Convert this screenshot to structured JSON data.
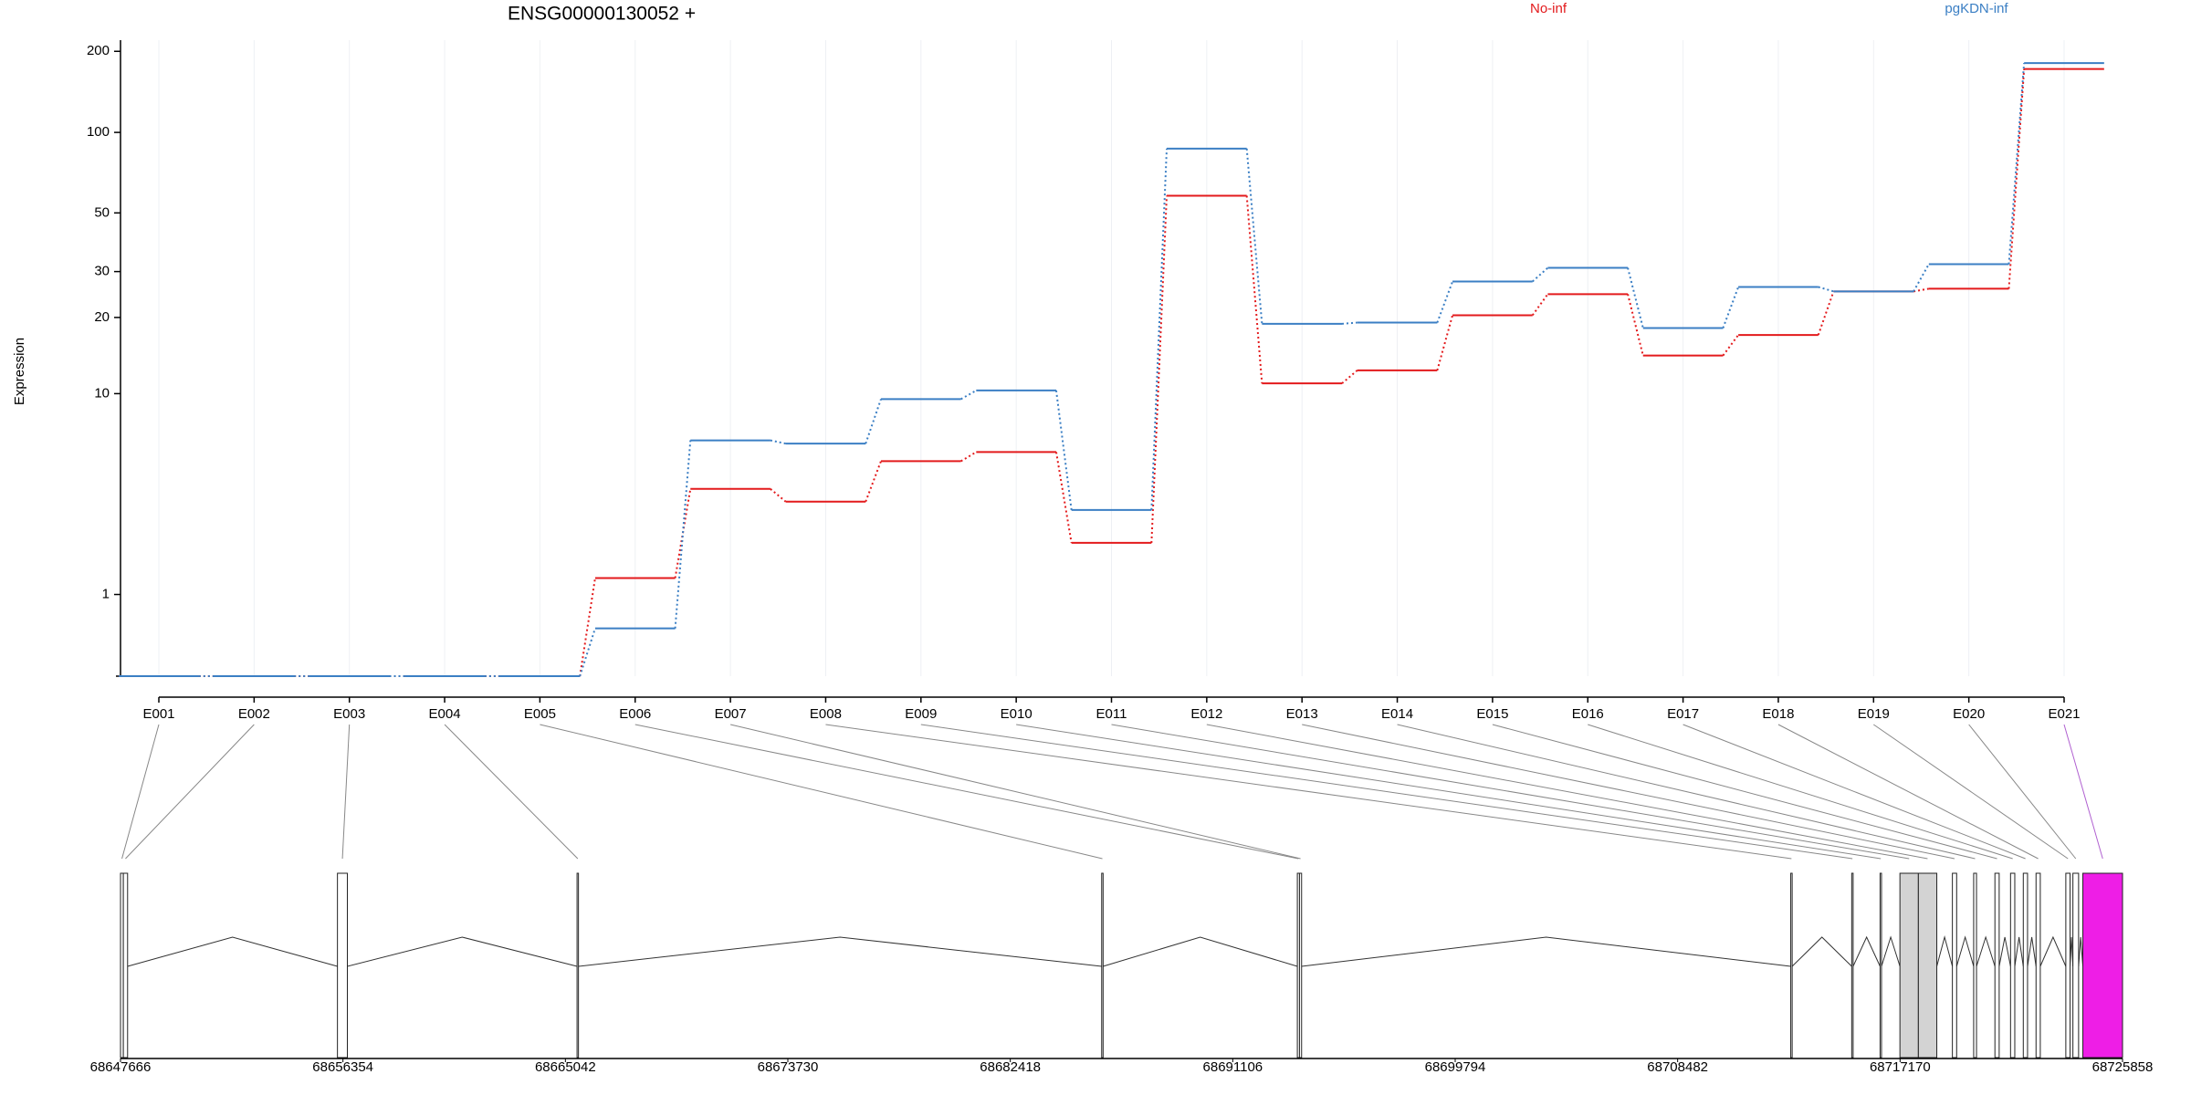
{
  "chart_data": [
    {
      "type": "line",
      "title": "ENSG00000130052 +",
      "y_label": "Expression",
      "scale": "log1p",
      "grid": true,
      "legend": "top",
      "categories": [
        "E001",
        "E002",
        "E003",
        "E004",
        "E005",
        "E006",
        "E007",
        "E008",
        "E009",
        "E010",
        "E011",
        "E012",
        "E013",
        "E014",
        "E015",
        "E016",
        "E017",
        "E018",
        "E019",
        "E020",
        "E021"
      ],
      "series": [
        {
          "name": "No-inf",
          "color": "#e31a1c",
          "values": [
            0,
            0,
            0,
            0,
            0,
            1.3,
            3.9,
            3.4,
            5.2,
            5.7,
            2.1,
            58,
            11,
            12.4,
            20.4,
            24.6,
            14.2,
            17.1,
            25.2,
            25.8,
            172
          ]
        },
        {
          "name": "pgKDN-inf",
          "color": "#3b7fc4",
          "values": [
            0,
            0,
            0,
            0,
            0,
            0.5,
            6.4,
            6.2,
            9.5,
            10.3,
            3.1,
            87,
            18.9,
            19.1,
            27.5,
            31,
            18.2,
            26.2,
            25.2,
            32,
            181
          ]
        }
      ],
      "ylim": [
        0,
        220
      ],
      "yticks": [
        1,
        10,
        20,
        30,
        50,
        100,
        200
      ]
    },
    {
      "type": "gene_model",
      "exons": [
        {
          "start": 68647666,
          "end": 68647777,
          "color": "#ffffff"
        },
        {
          "start": 68647777,
          "end": 68647943,
          "color": "#ffffff"
        },
        {
          "start": 68656139,
          "end": 68656526,
          "color": "#ffffff"
        },
        {
          "start": 68665497,
          "end": 68665552,
          "color": "#ffffff"
        },
        {
          "start": 68685987,
          "end": 68686042,
          "color": "#ffffff"
        },
        {
          "start": 68693629,
          "end": 68693712,
          "color": "#ffffff"
        },
        {
          "start": 68693712,
          "end": 68693795,
          "color": "#ffffff"
        },
        {
          "start": 68712900,
          "end": 68712955,
          "color": "#ffffff"
        },
        {
          "start": 68715281,
          "end": 68715336,
          "color": "#ffffff"
        },
        {
          "start": 68716389,
          "end": 68716444,
          "color": "#ffffff"
        },
        {
          "start": 68717164,
          "end": 68717884,
          "color": "#d3d3d3"
        },
        {
          "start": 68717884,
          "end": 68718604,
          "color": "#d3d3d3"
        },
        {
          "start": 68719213,
          "end": 68719379,
          "color": "#ffffff"
        },
        {
          "start": 68720044,
          "end": 68720155,
          "color": "#ffffff"
        },
        {
          "start": 68720874,
          "end": 68721040,
          "color": "#ffffff"
        },
        {
          "start": 68721484,
          "end": 68721650,
          "color": "#ffffff"
        },
        {
          "start": 68721982,
          "end": 68722148,
          "color": "#ffffff"
        },
        {
          "start": 68722480,
          "end": 68722646,
          "color": "#ffffff"
        },
        {
          "start": 68723643,
          "end": 68723809,
          "color": "#ffffff"
        },
        {
          "start": 68723920,
          "end": 68724142,
          "color": "#ffffff"
        },
        {
          "start": 68724308,
          "end": 68725858,
          "color": "#ee1ee6"
        }
      ],
      "xlim": [
        68647666,
        68725858
      ],
      "xticks": [
        68647666,
        68656354,
        68665042,
        68673730,
        68682418,
        68691106,
        68699794,
        68708482,
        68717170,
        68725858
      ]
    }
  ]
}
